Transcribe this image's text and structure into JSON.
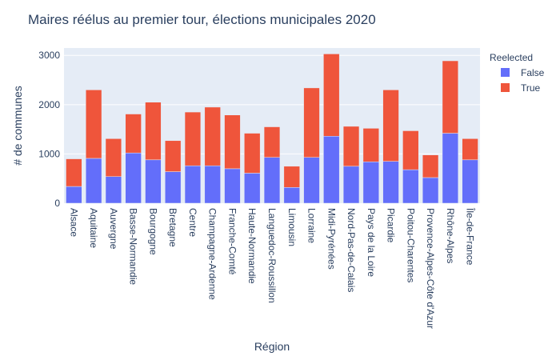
{
  "chart_data": {
    "type": "bar",
    "barmode": "stack",
    "title": "Maires réélus au premier tour, élections municipales 2020",
    "xlabel": "Région",
    "ylabel": "# de communes",
    "ylim": [
      0,
      3150
    ],
    "yticks": [
      0,
      1000,
      2000,
      3000
    ],
    "ytick_labels": [
      "0",
      "1000",
      "2000",
      "3000"
    ],
    "categories": [
      "Alsace",
      "Aquitaine",
      "Auvergne",
      "Basse-Normandie",
      "Bourgogne",
      "Bretagne",
      "Centre",
      "Champagne-Ardenne",
      "Franche-Comté",
      "Haute-Normandie",
      "Languedoc-Roussillon",
      "Limousin",
      "Lorraine",
      "Midi-Pyrénées",
      "Nord-Pas-de-Calais",
      "Pays de la Loire",
      "Picardie",
      "Poitou-Charentes",
      "Provence-Alpes-Côte d'Azur",
      "Rhône-Alpes",
      "Île-de-France"
    ],
    "legend_title": "Reelected",
    "legend_position": "top-right",
    "series": [
      {
        "name": "False",
        "color": "#636efa",
        "values": [
          340,
          910,
          540,
          1020,
          880,
          640,
          760,
          760,
          700,
          610,
          930,
          320,
          930,
          1360,
          750,
          840,
          850,
          680,
          520,
          1420,
          880
        ]
      },
      {
        "name": "True",
        "color": "#ef553b",
        "values": [
          560,
          1390,
          770,
          790,
          1170,
          630,
          1090,
          1190,
          1090,
          810,
          620,
          430,
          1410,
          1670,
          810,
          680,
          1450,
          790,
          460,
          1470,
          430
        ]
      }
    ],
    "plot_bgcolor": "#e5ecf6",
    "grid": true
  }
}
